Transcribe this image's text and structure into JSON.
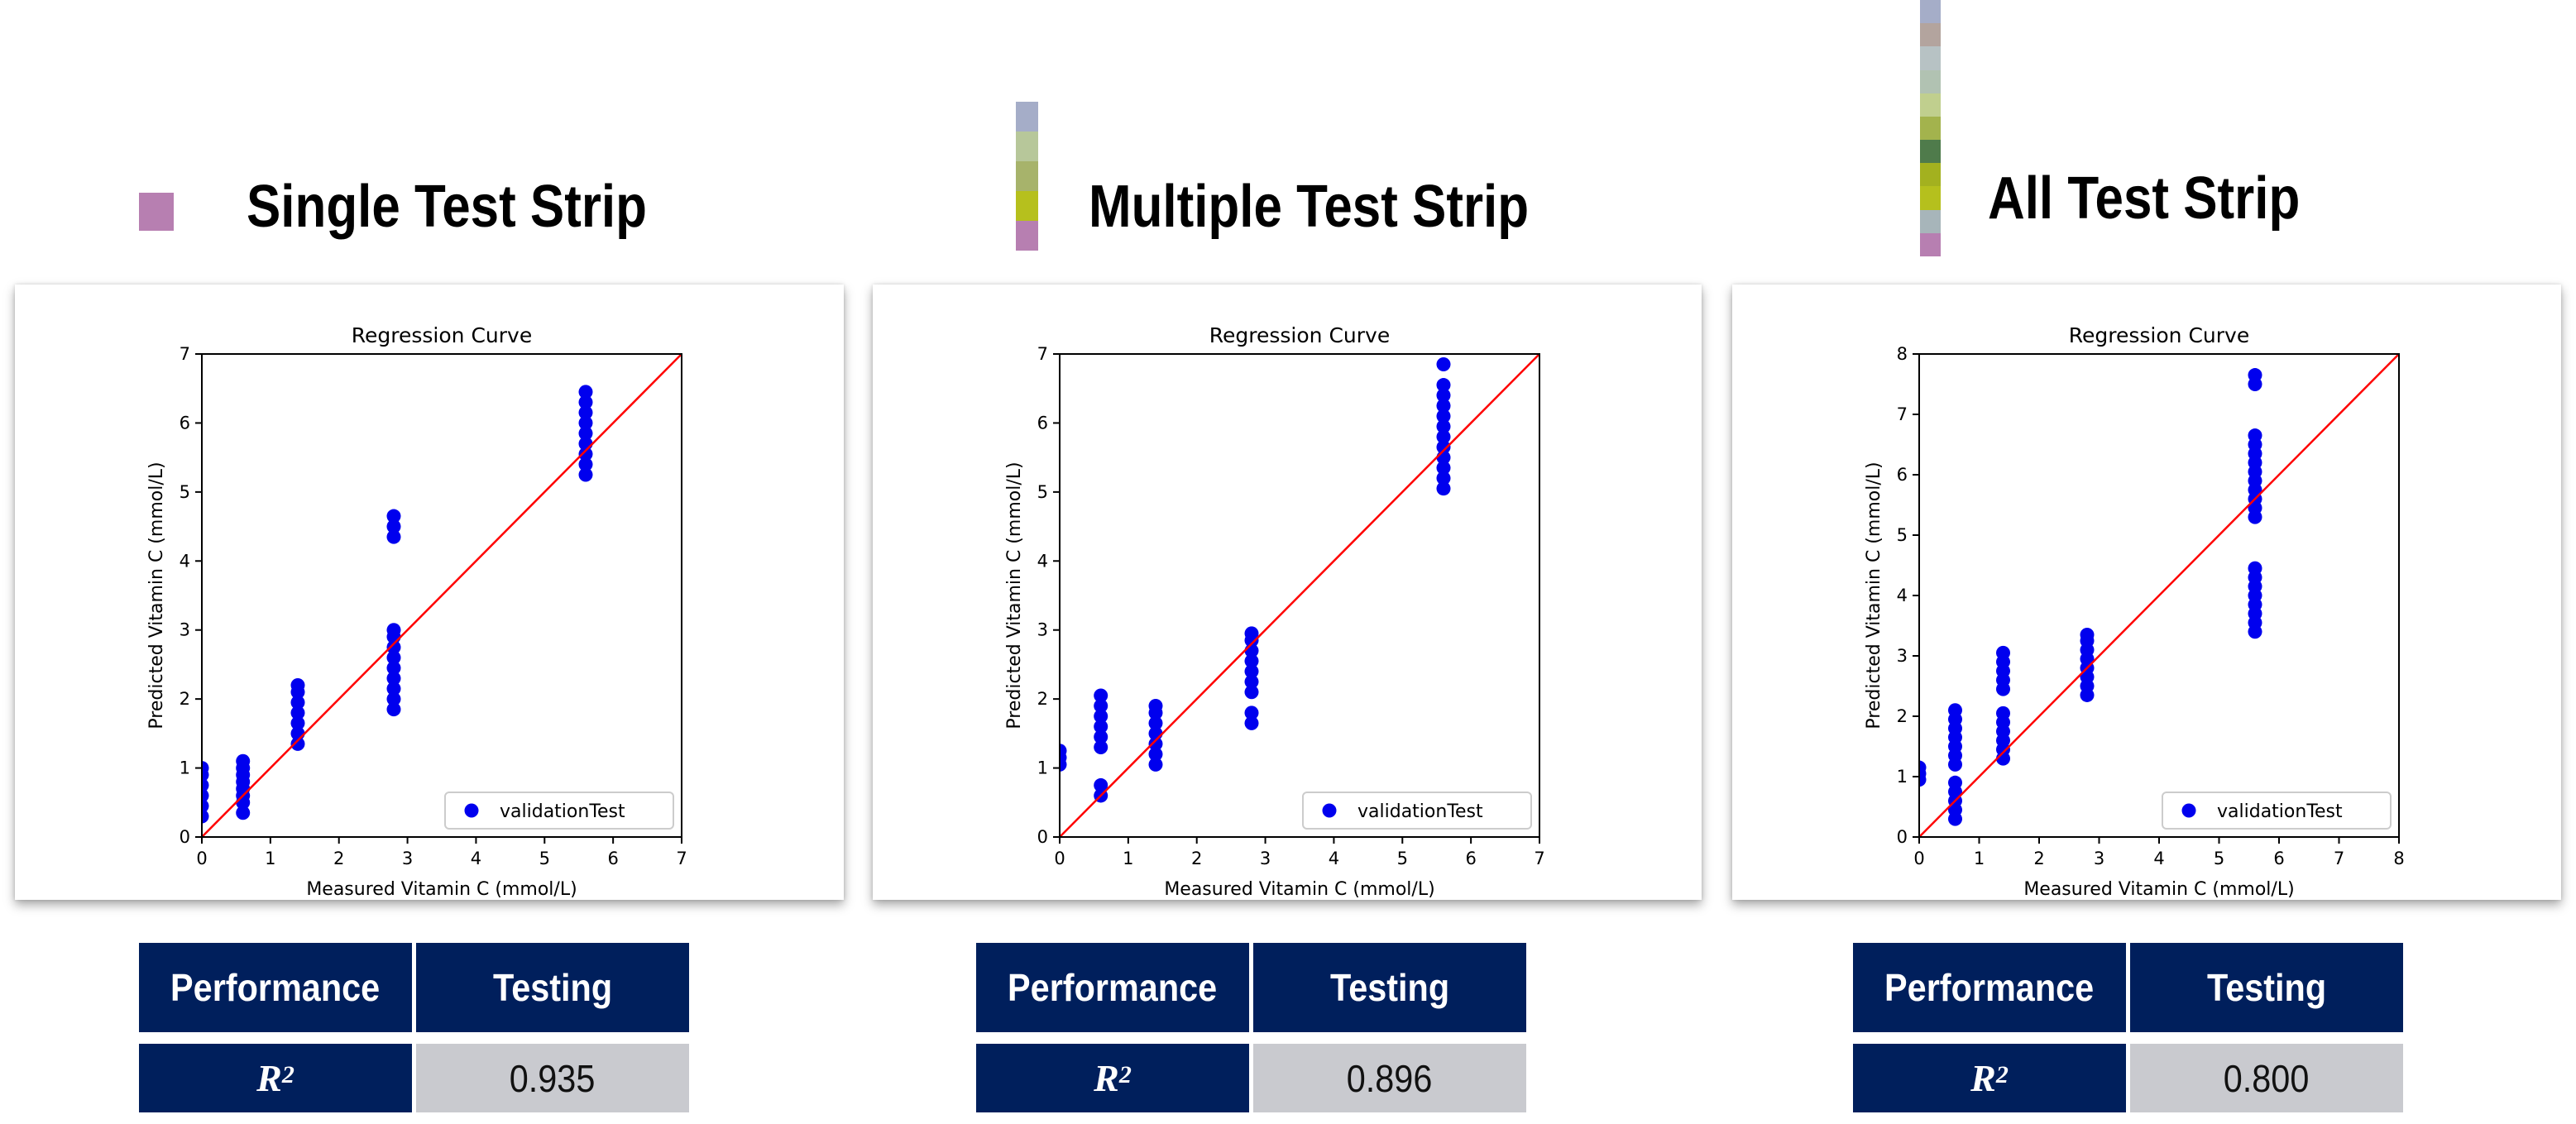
{
  "panels": [
    {
      "title": "Single Test Strip",
      "strip_colors": [
        "#b77fb1"
      ],
      "chart_data": {
        "type": "scatter",
        "title": "Regression Curve",
        "xlabel": "Measured Vitamin C (mmol/L)",
        "ylabel": "Predicted Vitamin C (mmol/L)",
        "xlim": [
          0,
          7
        ],
        "ylim": [
          0,
          7
        ],
        "xticks": [
          "0",
          "1",
          "2",
          "3",
          "4",
          "5",
          "6",
          "7"
        ],
        "yticks": [
          "0",
          "1",
          "2",
          "3",
          "4",
          "5",
          "6",
          "7"
        ],
        "legend": "lower-right",
        "series": [
          {
            "name": "validationTest",
            "color": "#0000ee",
            "groups": [
              {
                "x": 0,
                "y": [
                  0.3,
                  0.45,
                  0.6,
                  0.75,
                  0.9,
                  1.0
                ]
              },
              {
                "x": 0.6,
                "y": [
                  0.35,
                  0.5,
                  0.6,
                  0.7,
                  0.8,
                  0.9,
                  1.0,
                  1.1
                ]
              },
              {
                "x": 1.4,
                "y": [
                  1.35,
                  1.5,
                  1.65,
                  1.8,
                  1.95,
                  2.1,
                  2.2
                ]
              },
              {
                "x": 2.8,
                "y": [
                  1.85,
                  2.0,
                  2.15,
                  2.3,
                  2.45,
                  2.6,
                  2.75,
                  2.9,
                  3.0,
                  4.35,
                  4.5,
                  4.65
                ]
              },
              {
                "x": 5.6,
                "y": [
                  5.25,
                  5.4,
                  5.55,
                  5.7,
                  5.85,
                  6.0,
                  6.15,
                  6.3,
                  6.45
                ]
              }
            ]
          }
        ],
        "fit_line": {
          "color": "#ff0000",
          "from": [
            0,
            0
          ],
          "to": [
            7,
            7
          ]
        }
      },
      "table": {
        "header": [
          "Performance",
          "Testing"
        ],
        "metric": "R",
        "metric_sup": "2",
        "value": "0.935"
      }
    },
    {
      "title": "Multiple Test Strip",
      "strip_colors": [
        "#a5adc8",
        "#b7c79a",
        "#a7b36b",
        "#b6c01d",
        "#b77fb1"
      ],
      "chart_data": {
        "type": "scatter",
        "title": "Regression Curve",
        "xlabel": "Measured Vitamin C (mmol/L)",
        "ylabel": "Predicted Vitamin C (mmol/L)",
        "xlim": [
          0,
          7
        ],
        "ylim": [
          0,
          7
        ],
        "xticks": [
          "0",
          "1",
          "2",
          "3",
          "4",
          "5",
          "6",
          "7"
        ],
        "yticks": [
          "0",
          "1",
          "2",
          "3",
          "4",
          "5",
          "6",
          "7"
        ],
        "legend": "lower-right",
        "series": [
          {
            "name": "validationTest",
            "color": "#0000ee",
            "groups": [
              {
                "x": 0,
                "y": [
                  1.05,
                  1.15,
                  1.25
                ]
              },
              {
                "x": 0.6,
                "y": [
                  0.6,
                  0.75,
                  1.3,
                  1.45,
                  1.6,
                  1.75,
                  1.9,
                  2.05
                ]
              },
              {
                "x": 1.4,
                "y": [
                  1.05,
                  1.2,
                  1.35,
                  1.5,
                  1.65,
                  1.8,
                  1.9
                ]
              },
              {
                "x": 2.8,
                "y": [
                  1.65,
                  1.8,
                  2.1,
                  2.25,
                  2.4,
                  2.55,
                  2.7,
                  2.85,
                  2.95
                ]
              },
              {
                "x": 5.6,
                "y": [
                  5.05,
                  5.2,
                  5.35,
                  5.5,
                  5.65,
                  5.8,
                  5.95,
                  6.1,
                  6.25,
                  6.4,
                  6.55,
                  6.85
                ]
              }
            ]
          }
        ],
        "fit_line": {
          "color": "#ff0000",
          "from": [
            0,
            0
          ],
          "to": [
            7,
            7
          ]
        }
      },
      "table": {
        "header": [
          "Performance",
          "Testing"
        ],
        "metric": "R",
        "metric_sup": "2",
        "value": "0.896"
      }
    },
    {
      "title": "All Test Strip",
      "strip_colors": [
        "#a5adc8",
        "#b3a49e",
        "#b7c2c4",
        "#b1c2b2",
        "#c0cf8e",
        "#a3b34d",
        "#4f7b4b",
        "#a3b11f",
        "#b5c01d",
        "#a7b5ba",
        "#b77fb1"
      ],
      "chart_data": {
        "type": "scatter",
        "title": "Regression Curve",
        "xlabel": "Measured Vitamin C (mmol/L)",
        "ylabel": "Predicted Vitamin C (mmol/L)",
        "xlim": [
          0,
          8
        ],
        "ylim": [
          0,
          8
        ],
        "xticks": [
          "0",
          "1",
          "2",
          "3",
          "4",
          "5",
          "6",
          "7",
          "8"
        ],
        "yticks": [
          "0",
          "1",
          "2",
          "3",
          "4",
          "5",
          "6",
          "7",
          "8"
        ],
        "legend": "lower-right",
        "series": [
          {
            "name": "validationTest",
            "color": "#0000ee",
            "groups": [
              {
                "x": 0,
                "y": [
                  0.95,
                  1.05,
                  1.15
                ]
              },
              {
                "x": 0.6,
                "y": [
                  0.3,
                  0.45,
                  0.6,
                  0.75,
                  0.9,
                  1.2,
                  1.35,
                  1.5,
                  1.65,
                  1.8,
                  1.95,
                  2.1
                ]
              },
              {
                "x": 1.4,
                "y": [
                  1.3,
                  1.45,
                  1.6,
                  1.75,
                  1.9,
                  2.05,
                  2.45,
                  2.6,
                  2.75,
                  2.9,
                  3.05
                ]
              },
              {
                "x": 2.8,
                "y": [
                  2.35,
                  2.5,
                  2.65,
                  2.8,
                  2.95,
                  3.1,
                  3.25,
                  3.35
                ]
              },
              {
                "x": 5.6,
                "y": [
                  3.4,
                  3.55,
                  3.7,
                  3.85,
                  4.0,
                  4.15,
                  4.3,
                  4.45,
                  5.3,
                  5.45,
                  5.6,
                  5.75,
                  5.9,
                  6.05,
                  6.2,
                  6.35,
                  6.5,
                  6.65,
                  7.5,
                  7.65
                ]
              }
            ]
          }
        ],
        "fit_line": {
          "color": "#ff0000",
          "from": [
            0,
            0
          ],
          "to": [
            8,
            8
          ]
        }
      },
      "table": {
        "header": [
          "Performance",
          "Testing"
        ],
        "metric": "R",
        "metric_sup": "2",
        "value": "0.800"
      }
    }
  ]
}
